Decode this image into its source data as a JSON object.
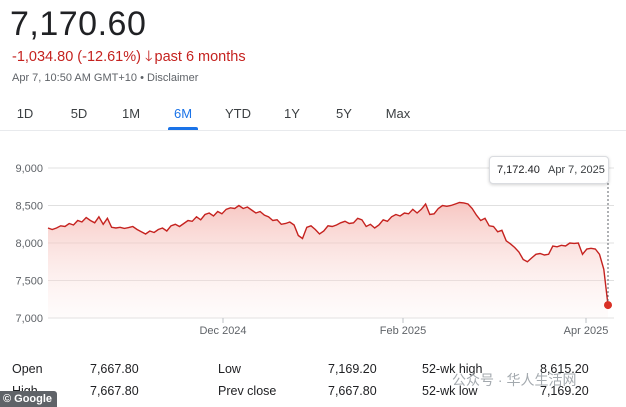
{
  "header": {
    "price": "7,170.60",
    "change": "-1,034.80 (-12.61%)",
    "period": "past 6 months",
    "timestamp": "Apr 7, 10:50 AM GMT+10",
    "disclaimer": "Disclaimer",
    "change_color": "#c5221f"
  },
  "tabs": [
    {
      "label": "1D"
    },
    {
      "label": "5D"
    },
    {
      "label": "1M"
    },
    {
      "label": "6M"
    },
    {
      "label": "YTD"
    },
    {
      "label": "1Y"
    },
    {
      "label": "5Y"
    },
    {
      "label": "Max"
    }
  ],
  "active_tab": "6M",
  "tooltip": {
    "value": "7,172.40",
    "date": "Apr 7, 2025"
  },
  "chart_data": {
    "type": "area",
    "title": "",
    "xlabel": "",
    "ylabel": "",
    "ylim": [
      7000,
      9000
    ],
    "yticks": [
      9000,
      8500,
      8000,
      7500,
      7000
    ],
    "ytick_labels": [
      "9,000",
      "8,500",
      "8,000",
      "7,500",
      "7,000"
    ],
    "xtick_labels": [
      "Dec 2024",
      "Feb 2025",
      "Apr 2025"
    ],
    "grid": true,
    "line_color": "#c5221f",
    "fill_color": "#fce8e6",
    "series": [
      {
        "values": [
          8200,
          8180,
          8200,
          8230,
          8220,
          8260,
          8240,
          8300,
          8280,
          8340,
          8300,
          8270,
          8350,
          8250,
          8330,
          8210,
          8200,
          8210,
          8195,
          8205,
          8220,
          8180,
          8150,
          8120,
          8160,
          8140,
          8180,
          8200,
          8160,
          8230,
          8250,
          8220,
          8260,
          8300,
          8290,
          8350,
          8310,
          8380,
          8400,
          8360,
          8420,
          8390,
          8450,
          8470,
          8460,
          8500,
          8460,
          8480,
          8440,
          8400,
          8420,
          8370,
          8350,
          8300,
          8310,
          8250,
          8260,
          8280,
          8240,
          8100,
          8060,
          8210,
          8230,
          8180,
          8120,
          8160,
          8230,
          8220,
          8240,
          8270,
          8290,
          8260,
          8270,
          8330,
          8310,
          8220,
          8250,
          8200,
          8240,
          8310,
          8290,
          8350,
          8380,
          8360,
          8400,
          8390,
          8450,
          8400,
          8450,
          8520,
          8380,
          8390,
          8460,
          8500,
          8490,
          8500,
          8520,
          8540,
          8535,
          8520,
          8460,
          8370,
          8300,
          8330,
          8230,
          8220,
          8150,
          8170,
          8030,
          7990,
          7940,
          7880,
          7780,
          7750,
          7800,
          7850,
          7860,
          7840,
          7850,
          7960,
          7950,
          7970,
          7960,
          8000,
          7995,
          8000,
          7850,
          7920,
          7930,
          7920,
          7850,
          7650,
          7172
        ]
      }
    ],
    "last_point": {
      "date": "Apr 7, 2025",
      "value": 7172.4
    }
  },
  "stats": {
    "rows": [
      {
        "k1": "Open",
        "v1": "7,667.80",
        "k2": "Low",
        "v2": "7,169.20",
        "k3": "52-wk high",
        "v3": "8,615.20"
      },
      {
        "k1": "High",
        "v1": "7,667.80",
        "k2": "Prev close",
        "v2": "7,667.80",
        "k3": "52-wk low",
        "v3": "7,169.20"
      }
    ]
  },
  "footer": {
    "logo": "© Google",
    "watermark": "公众号 · 华人生活网"
  }
}
